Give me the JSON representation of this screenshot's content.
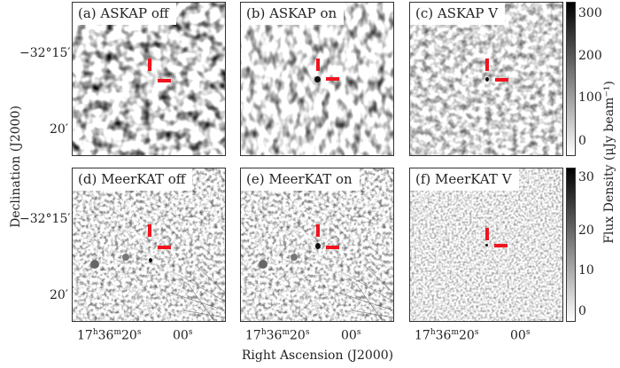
{
  "panels": [
    {
      "label": "(a) ASKAP off"
    },
    {
      "label": "(b) ASKAP on"
    },
    {
      "label": "(c) ASKAP V"
    },
    {
      "label": "(d) MeerKAT off"
    },
    {
      "label": "(e) MeerKAT on"
    },
    {
      "label": "(f) MeerKAT V"
    }
  ],
  "axes": {
    "ylabel": "Declination (J2000)",
    "xlabel": "Right Ascension (J2000)",
    "yticks": [
      "−32°15′",
      "20′"
    ],
    "xticks": {
      "first": {
        "h": "17",
        "m": "36",
        "s": "20"
      },
      "second": "00"
    },
    "x_units": {
      "h": "h",
      "m": "m",
      "s": "s"
    }
  },
  "colorbars": {
    "label": "Flux Density (μJy beam⁻¹)",
    "top": {
      "ticks": [
        "300",
        "200",
        "100",
        "0"
      ]
    },
    "bottom": {
      "ticks": [
        "30",
        "20",
        "10",
        "0"
      ]
    }
  },
  "colors": {
    "marker": "#f0141e",
    "colormap": "greyscale (white low, black high)"
  }
}
